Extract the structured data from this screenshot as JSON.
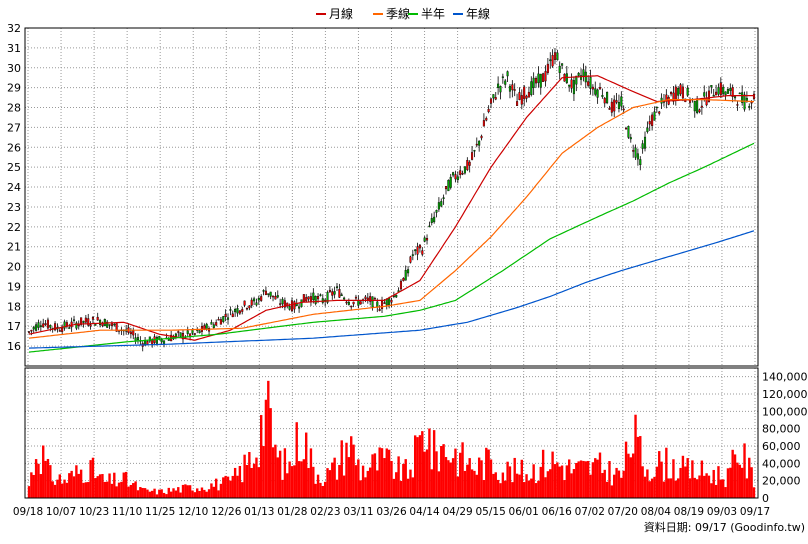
{
  "legend": [
    {
      "label": "月線",
      "color": "#cc0000"
    },
    {
      "label": "季線",
      "color": "#ff6600"
    },
    {
      "label": "半年",
      "color": "#00bb00"
    },
    {
      "label": "年線",
      "color": "#0055cc"
    }
  ],
  "source_text": "資料日期: 09/17  (Goodinfo.tw)",
  "chart_data": [
    {
      "type": "line",
      "title": "",
      "x_ticks": [
        "09/18",
        "10/07",
        "10/23",
        "11/10",
        "11/25",
        "12/10",
        "12/26",
        "01/13",
        "01/28",
        "02/23",
        "03/11",
        "03/26",
        "04/14",
        "04/29",
        "05/15",
        "06/01",
        "06/16",
        "07/02",
        "07/20",
        "08/04",
        "08/19",
        "09/03",
        "09/17"
      ],
      "ylim": [
        15,
        32
      ],
      "y_ticks": [
        16,
        17,
        18,
        19,
        20,
        21,
        22,
        23,
        24,
        25,
        26,
        27,
        28,
        29,
        30,
        31,
        32
      ],
      "grid": true,
      "candles": {
        "anchors": [
          [
            0,
            16.7
          ],
          [
            5,
            17.2
          ],
          [
            12,
            16.9
          ],
          [
            22,
            17.2
          ],
          [
            30,
            17.3
          ],
          [
            36,
            17.0
          ],
          [
            42,
            16.7
          ],
          [
            48,
            16.2
          ],
          [
            55,
            16.3
          ],
          [
            62,
            16.5
          ],
          [
            70,
            16.6
          ],
          [
            78,
            17.1
          ],
          [
            84,
            17.6
          ],
          [
            92,
            18.1
          ],
          [
            96,
            18.2
          ],
          [
            100,
            18.8
          ],
          [
            106,
            18.2
          ],
          [
            112,
            18.0
          ],
          [
            118,
            18.5
          ],
          [
            124,
            18.3
          ],
          [
            130,
            18.8
          ],
          [
            136,
            18.2
          ],
          [
            144,
            18.3
          ],
          [
            148,
            18.0
          ],
          [
            154,
            18.5
          ],
          [
            158,
            19.2
          ],
          [
            162,
            20.6
          ],
          [
            166,
            20.9
          ],
          [
            170,
            22.2
          ],
          [
            174,
            23.2
          ],
          [
            178,
            24.3
          ],
          [
            182,
            24.8
          ],
          [
            186,
            25.1
          ],
          [
            190,
            26.3
          ],
          [
            194,
            27.8
          ],
          [
            198,
            29.0
          ],
          [
            202,
            29.5
          ],
          [
            206,
            28.3
          ],
          [
            210,
            28.8
          ],
          [
            214,
            29.2
          ],
          [
            218,
            29.6
          ],
          [
            222,
            30.7
          ],
          [
            226,
            29.6
          ],
          [
            230,
            29.0
          ],
          [
            234,
            29.8
          ],
          [
            238,
            29.0
          ],
          [
            242,
            28.8
          ],
          [
            246,
            28.0
          ],
          [
            250,
            28.2
          ],
          [
            254,
            26.3
          ],
          [
            258,
            25.4
          ],
          [
            262,
            27.2
          ],
          [
            266,
            28.0
          ],
          [
            270,
            28.4
          ],
          [
            274,
            28.9
          ],
          [
            278,
            28.6
          ],
          [
            282,
            28.0
          ],
          [
            286,
            28.5
          ],
          [
            290,
            29.0
          ],
          [
            294,
            28.8
          ],
          [
            298,
            28.6
          ],
          [
            302,
            28.3
          ],
          [
            306,
            28.5
          ]
        ],
        "count": 307
      },
      "series": [
        {
          "name": "月線",
          "color": "#cc0000",
          "values": [
            [
              0,
              16.6
            ],
            [
              20,
              17.1
            ],
            [
              40,
              17.2
            ],
            [
              55,
              16.6
            ],
            [
              70,
              16.3
            ],
            [
              85,
              16.8
            ],
            [
              100,
              17.8
            ],
            [
              115,
              18.2
            ],
            [
              130,
              18.3
            ],
            [
              150,
              18.3
            ],
            [
              165,
              19.3
            ],
            [
              180,
              22.0
            ],
            [
              195,
              25.0
            ],
            [
              210,
              27.5
            ],
            [
              225,
              29.5
            ],
            [
              240,
              29.6
            ],
            [
              255,
              28.8
            ],
            [
              265,
              28.3
            ],
            [
              280,
              28.4
            ],
            [
              295,
              28.6
            ],
            [
              306,
              28.6
            ]
          ]
        },
        {
          "name": "季線",
          "color": "#ff6600",
          "values": [
            [
              0,
              16.4
            ],
            [
              30,
              16.8
            ],
            [
              60,
              16.8
            ],
            [
              90,
              16.9
            ],
            [
              120,
              17.6
            ],
            [
              150,
              18.0
            ],
            [
              165,
              18.3
            ],
            [
              180,
              19.8
            ],
            [
              195,
              21.5
            ],
            [
              210,
              23.5
            ],
            [
              225,
              25.7
            ],
            [
              240,
              27.0
            ],
            [
              255,
              28.0
            ],
            [
              270,
              28.4
            ],
            [
              285,
              28.4
            ],
            [
              306,
              28.3
            ]
          ]
        },
        {
          "name": "半年",
          "color": "#00bb00",
          "values": [
            [
              0,
              15.7
            ],
            [
              40,
              16.2
            ],
            [
              80,
              16.6
            ],
            [
              120,
              17.2
            ],
            [
              150,
              17.5
            ],
            [
              165,
              17.8
            ],
            [
              180,
              18.3
            ],
            [
              200,
              19.8
            ],
            [
              220,
              21.4
            ],
            [
              240,
              22.5
            ],
            [
              255,
              23.3
            ],
            [
              270,
              24.2
            ],
            [
              285,
              25.0
            ],
            [
              306,
              26.2
            ]
          ]
        },
        {
          "name": "年線",
          "color": "#0055cc",
          "values": [
            [
              0,
              15.9
            ],
            [
              60,
              16.1
            ],
            [
              120,
              16.4
            ],
            [
              165,
              16.8
            ],
            [
              185,
              17.2
            ],
            [
              205,
              17.9
            ],
            [
              220,
              18.5
            ],
            [
              235,
              19.2
            ],
            [
              250,
              19.8
            ],
            [
              270,
              20.5
            ],
            [
              290,
              21.2
            ],
            [
              306,
              21.8
            ]
          ]
        }
      ]
    },
    {
      "type": "bar",
      "title": "",
      "ylim": [
        0,
        150000
      ],
      "y_ticks": [
        "0",
        "20,000",
        "40,000",
        "60,000",
        "80,000",
        "100,000",
        "120,000",
        "140,000"
      ],
      "y_tick_values": [
        0,
        20000,
        40000,
        60000,
        80000,
        100000,
        120000,
        140000
      ],
      "bar_color": "#ff0000",
      "volume_peaks": [
        [
          0,
          20000
        ],
        [
          4,
          85000
        ],
        [
          9,
          35000
        ],
        [
          15,
          28000
        ],
        [
          25,
          50000
        ],
        [
          32,
          25000
        ],
        [
          40,
          30000
        ],
        [
          48,
          12000
        ],
        [
          55,
          10000
        ],
        [
          65,
          15000
        ],
        [
          75,
          20000
        ],
        [
          85,
          25000
        ],
        [
          90,
          45000
        ],
        [
          95,
          70000
        ],
        [
          100,
          145000
        ],
        [
          105,
          60000
        ],
        [
          110,
          50000
        ],
        [
          115,
          110000
        ],
        [
          120,
          45000
        ],
        [
          125,
          35000
        ],
        [
          130,
          50000
        ],
        [
          135,
          90000
        ],
        [
          140,
          45000
        ],
        [
          150,
          60000
        ],
        [
          155,
          45000
        ],
        [
          160,
          40000
        ],
        [
          166,
          95000
        ],
        [
          168,
          120000
        ],
        [
          170,
          70000
        ],
        [
          175,
          80000
        ],
        [
          180,
          70000
        ],
        [
          185,
          55000
        ],
        [
          190,
          50000
        ],
        [
          195,
          60000
        ],
        [
          200,
          45000
        ],
        [
          210,
          40000
        ],
        [
          220,
          60000
        ],
        [
          230,
          45000
        ],
        [
          240,
          50000
        ],
        [
          250,
          35000
        ],
        [
          255,
          100000
        ],
        [
          260,
          50000
        ],
        [
          270,
          55000
        ],
        [
          275,
          45000
        ],
        [
          285,
          40000
        ],
        [
          295,
          35000
        ],
        [
          300,
          75000
        ],
        [
          306,
          30000
        ]
      ]
    }
  ]
}
